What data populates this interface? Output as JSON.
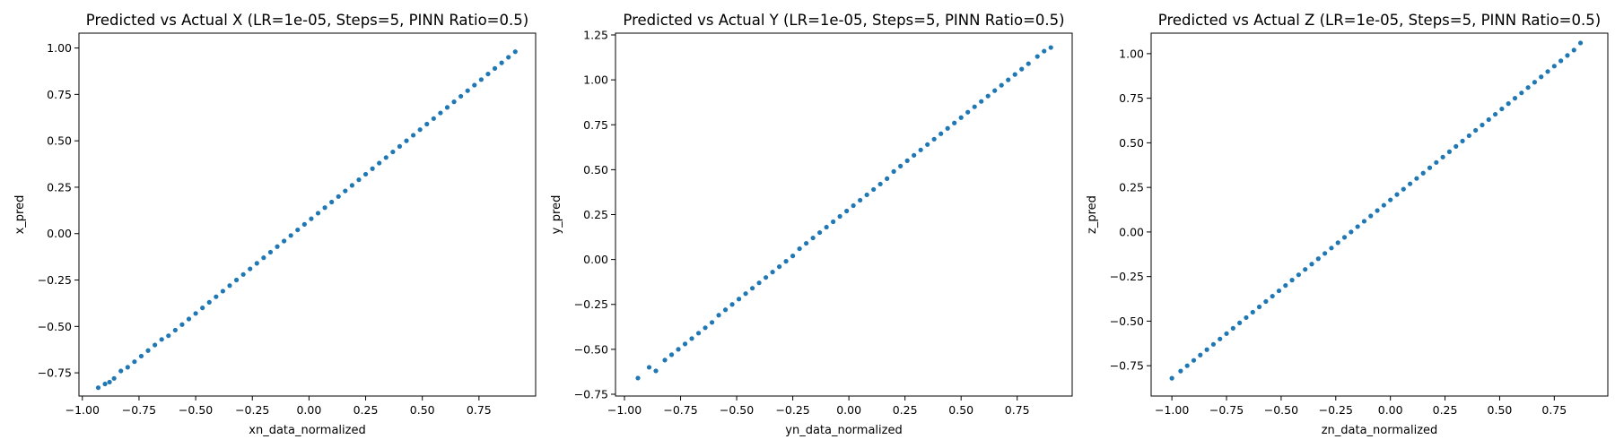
{
  "figure": {
    "background": "#ffffff",
    "point_color": "#1f77b4"
  },
  "chart_data": [
    {
      "type": "scatter",
      "title": "Predicted vs Actual X (LR=1e-05, Steps=5, PINN Ratio=0.5)",
      "xlabel": "xn_data_normalized",
      "ylabel": "x_pred",
      "xlim": [
        -1.015,
        1.0
      ],
      "ylim": [
        -0.875,
        1.08
      ],
      "xticks": [
        -1.0,
        -0.75,
        -0.5,
        -0.25,
        0.0,
        0.25,
        0.5,
        0.75
      ],
      "xtick_labels": [
        "−1.00",
        "−0.75",
        "−0.50",
        "−0.25",
        "0.00",
        "0.25",
        "0.50",
        "0.75"
      ],
      "yticks": [
        -0.75,
        -0.5,
        -0.25,
        0.0,
        0.25,
        0.5,
        0.75,
        1.0
      ],
      "ytick_labels": [
        "−0.75",
        "−0.50",
        "−0.25",
        "0.00",
        "0.25",
        "0.50",
        "0.75",
        "1.00"
      ],
      "grid": false,
      "series": [
        {
          "color": "#1f77b4",
          "points": [
            [
              -0.93,
              -0.83
            ],
            [
              -0.9,
              -0.81
            ],
            [
              -0.88,
              -0.8
            ],
            [
              -0.86,
              -0.78
            ],
            [
              -0.83,
              -0.74
            ],
            [
              -0.8,
              -0.72
            ],
            [
              -0.77,
              -0.69
            ],
            [
              -0.74,
              -0.66
            ],
            [
              -0.71,
              -0.63
            ],
            [
              -0.68,
              -0.6
            ],
            [
              -0.65,
              -0.57
            ],
            [
              -0.62,
              -0.55
            ],
            [
              -0.59,
              -0.52
            ],
            [
              -0.56,
              -0.49
            ],
            [
              -0.53,
              -0.46
            ],
            [
              -0.5,
              -0.43
            ],
            [
              -0.47,
              -0.4
            ],
            [
              -0.44,
              -0.37
            ],
            [
              -0.41,
              -0.34
            ],
            [
              -0.38,
              -0.31
            ],
            [
              -0.35,
              -0.28
            ],
            [
              -0.32,
              -0.25
            ],
            [
              -0.29,
              -0.22
            ],
            [
              -0.26,
              -0.19
            ],
            [
              -0.23,
              -0.16
            ],
            [
              -0.2,
              -0.13
            ],
            [
              -0.17,
              -0.1
            ],
            [
              -0.14,
              -0.07
            ],
            [
              -0.11,
              -0.04
            ],
            [
              -0.08,
              -0.01
            ],
            [
              -0.05,
              0.02
            ],
            [
              -0.02,
              0.05
            ],
            [
              0.01,
              0.08
            ],
            [
              0.04,
              0.11
            ],
            [
              0.07,
              0.14
            ],
            [
              0.1,
              0.17
            ],
            [
              0.13,
              0.2
            ],
            [
              0.16,
              0.23
            ],
            [
              0.19,
              0.26
            ],
            [
              0.22,
              0.29
            ],
            [
              0.25,
              0.32
            ],
            [
              0.28,
              0.35
            ],
            [
              0.31,
              0.38
            ],
            [
              0.34,
              0.41
            ],
            [
              0.37,
              0.44
            ],
            [
              0.4,
              0.47
            ],
            [
              0.43,
              0.5
            ],
            [
              0.46,
              0.53
            ],
            [
              0.49,
              0.56
            ],
            [
              0.52,
              0.59
            ],
            [
              0.55,
              0.62
            ],
            [
              0.58,
              0.65
            ],
            [
              0.61,
              0.68
            ],
            [
              0.64,
              0.71
            ],
            [
              0.67,
              0.74
            ],
            [
              0.7,
              0.77
            ],
            [
              0.73,
              0.8
            ],
            [
              0.76,
              0.83
            ],
            [
              0.79,
              0.86
            ],
            [
              0.82,
              0.89
            ],
            [
              0.85,
              0.92
            ],
            [
              0.88,
              0.95
            ],
            [
              0.91,
              0.98
            ]
          ]
        }
      ]
    },
    {
      "type": "scatter",
      "title": "Predicted vs Actual Y (LR=1e-05, Steps=5, PINN Ratio=0.5)",
      "xlabel": "yn_data_normalized",
      "ylabel": "y_pred",
      "xlim": [
        -1.04,
        0.995
      ],
      "ylim": [
        -0.76,
        1.26
      ],
      "xticks": [
        -1.0,
        -0.75,
        -0.5,
        -0.25,
        0.0,
        0.25,
        0.5,
        0.75
      ],
      "xtick_labels": [
        "−1.00",
        "−0.75",
        "−0.50",
        "−0.25",
        "0.00",
        "0.25",
        "0.50",
        "0.75"
      ],
      "yticks": [
        -0.75,
        -0.5,
        -0.25,
        0.0,
        0.25,
        0.5,
        0.75,
        1.0,
        1.25
      ],
      "ytick_labels": [
        "−0.75",
        "−0.50",
        "−0.25",
        "0.00",
        "0.25",
        "0.50",
        "0.75",
        "1.00",
        "1.25"
      ],
      "grid": false,
      "series": [
        {
          "color": "#1f77b4",
          "points": [
            [
              -0.94,
              -0.66
            ],
            [
              -0.89,
              -0.6
            ],
            [
              -0.86,
              -0.62
            ],
            [
              -0.82,
              -0.56
            ],
            [
              -0.79,
              -0.53
            ],
            [
              -0.76,
              -0.5
            ],
            [
              -0.73,
              -0.47
            ],
            [
              -0.7,
              -0.44
            ],
            [
              -0.67,
              -0.41
            ],
            [
              -0.64,
              -0.38
            ],
            [
              -0.61,
              -0.35
            ],
            [
              -0.58,
              -0.31
            ],
            [
              -0.55,
              -0.28
            ],
            [
              -0.52,
              -0.25
            ],
            [
              -0.49,
              -0.22
            ],
            [
              -0.46,
              -0.19
            ],
            [
              -0.43,
              -0.16
            ],
            [
              -0.4,
              -0.13
            ],
            [
              -0.37,
              -0.1
            ],
            [
              -0.34,
              -0.07
            ],
            [
              -0.31,
              -0.04
            ],
            [
              -0.28,
              -0.01
            ],
            [
              -0.25,
              0.02
            ],
            [
              -0.22,
              0.06
            ],
            [
              -0.19,
              0.09
            ],
            [
              -0.16,
              0.12
            ],
            [
              -0.13,
              0.15
            ],
            [
              -0.1,
              0.18
            ],
            [
              -0.07,
              0.21
            ],
            [
              -0.04,
              0.24
            ],
            [
              -0.01,
              0.27
            ],
            [
              0.02,
              0.3
            ],
            [
              0.05,
              0.33
            ],
            [
              0.08,
              0.36
            ],
            [
              0.11,
              0.39
            ],
            [
              0.14,
              0.42
            ],
            [
              0.17,
              0.45
            ],
            [
              0.2,
              0.49
            ],
            [
              0.23,
              0.52
            ],
            [
              0.26,
              0.55
            ],
            [
              0.29,
              0.58
            ],
            [
              0.32,
              0.61
            ],
            [
              0.35,
              0.64
            ],
            [
              0.38,
              0.67
            ],
            [
              0.41,
              0.7
            ],
            [
              0.44,
              0.73
            ],
            [
              0.47,
              0.76
            ],
            [
              0.5,
              0.79
            ],
            [
              0.53,
              0.82
            ],
            [
              0.56,
              0.85
            ],
            [
              0.59,
              0.88
            ],
            [
              0.62,
              0.91
            ],
            [
              0.65,
              0.94
            ],
            [
              0.68,
              0.97
            ],
            [
              0.71,
              1.0
            ],
            [
              0.74,
              1.03
            ],
            [
              0.77,
              1.06
            ],
            [
              0.8,
              1.09
            ],
            [
              0.84,
              1.13
            ],
            [
              0.87,
              1.16
            ],
            [
              0.9,
              1.18
            ]
          ]
        }
      ]
    },
    {
      "type": "scatter",
      "title": "Predicted vs Actual Z (LR=1e-05, Steps=5, PINN Ratio=0.5)",
      "xlabel": "zn_data_normalized",
      "ylabel": "z_pred",
      "xlim": [
        -1.095,
        0.995
      ],
      "ylim": [
        -0.92,
        1.115
      ],
      "xticks": [
        -1.0,
        -0.75,
        -0.5,
        -0.25,
        0.0,
        0.25,
        0.5,
        0.75
      ],
      "xtick_labels": [
        "−1.00",
        "−0.75",
        "−0.50",
        "−0.25",
        "0.00",
        "0.25",
        "0.50",
        "0.75"
      ],
      "yticks": [
        -0.75,
        -0.5,
        -0.25,
        0.0,
        0.25,
        0.5,
        0.75,
        1.0
      ],
      "ytick_labels": [
        "−0.75",
        "−0.50",
        "−0.25",
        "0.00",
        "0.25",
        "0.50",
        "0.75",
        "1.00"
      ],
      "grid": false,
      "series": [
        {
          "color": "#1f77b4",
          "points": [
            [
              -1.0,
              -0.82
            ],
            [
              -0.96,
              -0.78
            ],
            [
              -0.93,
              -0.75
            ],
            [
              -0.9,
              -0.72
            ],
            [
              -0.87,
              -0.69
            ],
            [
              -0.84,
              -0.66
            ],
            [
              -0.81,
              -0.63
            ],
            [
              -0.78,
              -0.6
            ],
            [
              -0.75,
              -0.57
            ],
            [
              -0.72,
              -0.54
            ],
            [
              -0.69,
              -0.51
            ],
            [
              -0.66,
              -0.48
            ],
            [
              -0.63,
              -0.45
            ],
            [
              -0.6,
              -0.42
            ],
            [
              -0.57,
              -0.39
            ],
            [
              -0.54,
              -0.36
            ],
            [
              -0.51,
              -0.33
            ],
            [
              -0.48,
              -0.3
            ],
            [
              -0.45,
              -0.27
            ],
            [
              -0.42,
              -0.24
            ],
            [
              -0.39,
              -0.21
            ],
            [
              -0.36,
              -0.18
            ],
            [
              -0.33,
              -0.15
            ],
            [
              -0.3,
              -0.12
            ],
            [
              -0.27,
              -0.09
            ],
            [
              -0.24,
              -0.06
            ],
            [
              -0.21,
              -0.03
            ],
            [
              -0.18,
              0.0
            ],
            [
              -0.15,
              0.03
            ],
            [
              -0.12,
              0.06
            ],
            [
              -0.09,
              0.09
            ],
            [
              -0.06,
              0.12
            ],
            [
              -0.03,
              0.15
            ],
            [
              0.0,
              0.18
            ],
            [
              0.03,
              0.21
            ],
            [
              0.06,
              0.24
            ],
            [
              0.09,
              0.27
            ],
            [
              0.12,
              0.3
            ],
            [
              0.15,
              0.33
            ],
            [
              0.18,
              0.36
            ],
            [
              0.21,
              0.39
            ],
            [
              0.24,
              0.42
            ],
            [
              0.27,
              0.45
            ],
            [
              0.3,
              0.48
            ],
            [
              0.33,
              0.51
            ],
            [
              0.36,
              0.54
            ],
            [
              0.39,
              0.57
            ],
            [
              0.42,
              0.6
            ],
            [
              0.45,
              0.63
            ],
            [
              0.48,
              0.66
            ],
            [
              0.51,
              0.69
            ],
            [
              0.54,
              0.72
            ],
            [
              0.57,
              0.75
            ],
            [
              0.6,
              0.78
            ],
            [
              0.63,
              0.81
            ],
            [
              0.66,
              0.84
            ],
            [
              0.69,
              0.87
            ],
            [
              0.72,
              0.9
            ],
            [
              0.75,
              0.93
            ],
            [
              0.78,
              0.96
            ],
            [
              0.81,
              0.99
            ],
            [
              0.84,
              1.02
            ],
            [
              0.87,
              1.06
            ]
          ]
        }
      ]
    }
  ]
}
